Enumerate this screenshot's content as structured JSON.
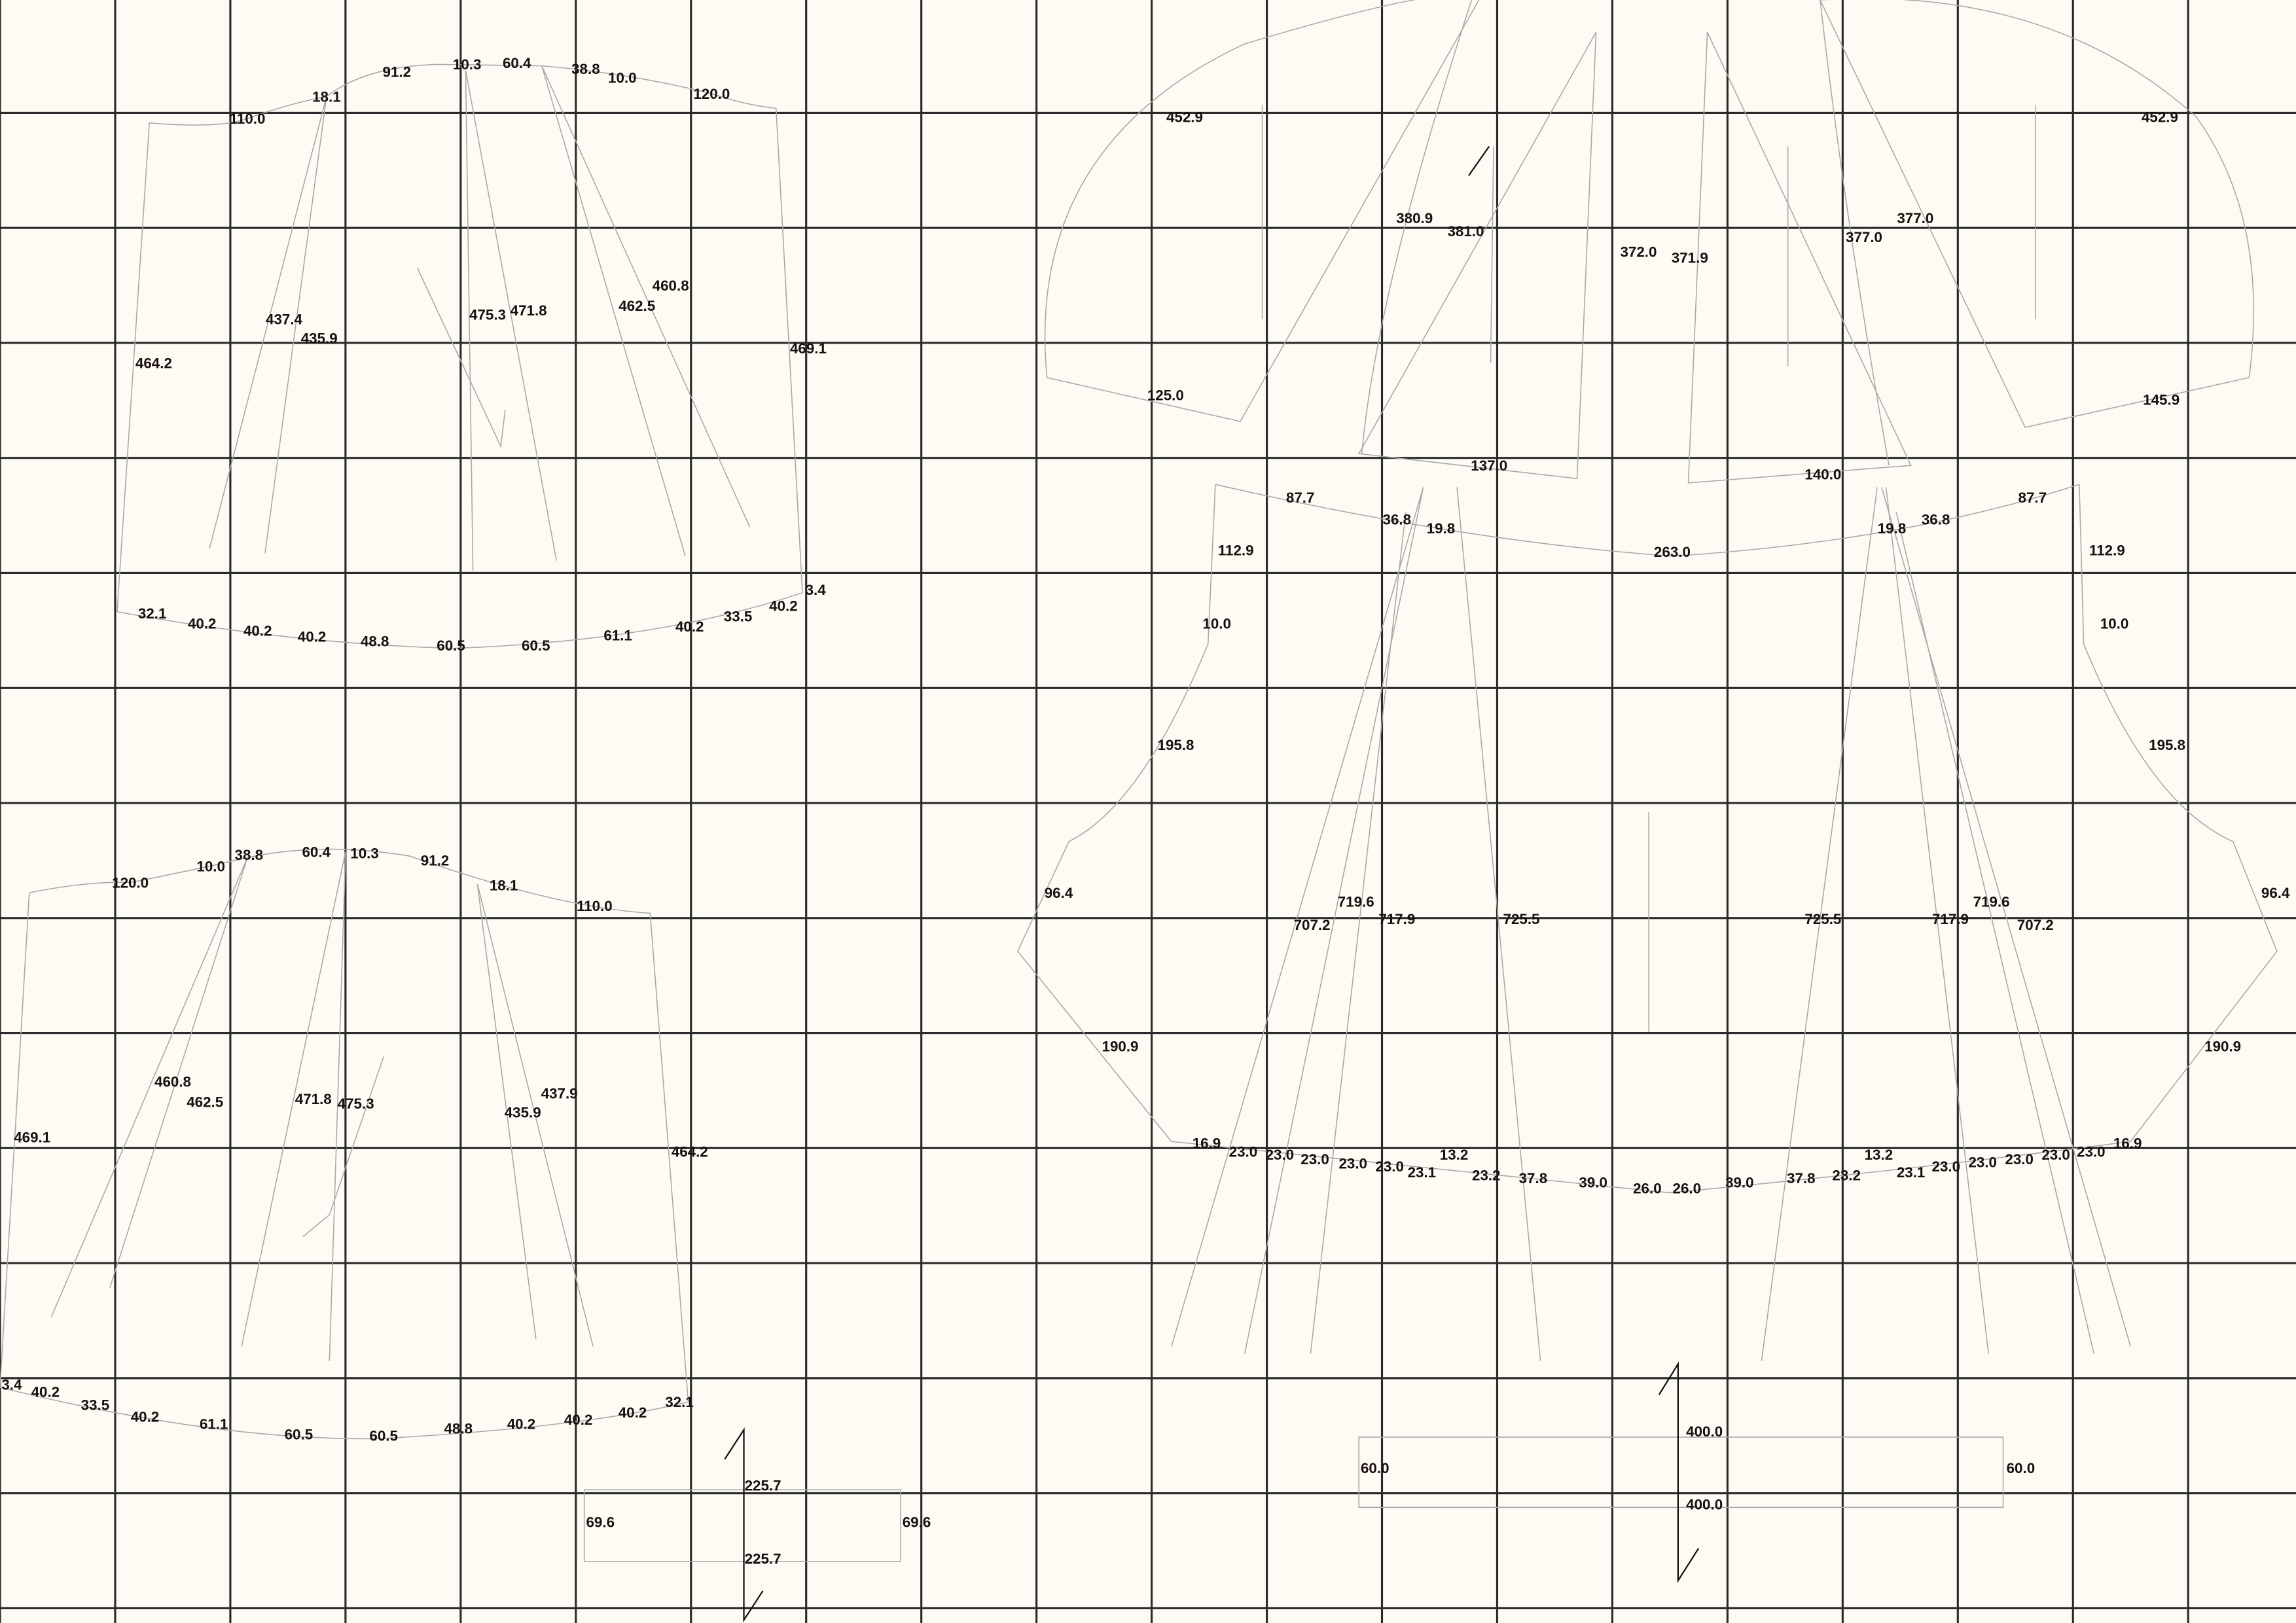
{
  "colors": {
    "background": "#fdfbf4",
    "grid": "#2a2a2a",
    "outline": "#a8a8a8",
    "text": "#1a0f0f"
  },
  "labels": {
    "upper_left_piece": [
      "110.0",
      "18.1",
      "91.2",
      "10.3",
      "60.4",
      "38.8",
      "10.0",
      "120.0",
      "437.4",
      "435.9",
      "475.3",
      "471.8",
      "462.5",
      "460.8",
      "464.2",
      "469.1",
      "32.1",
      "40.2",
      "40.2",
      "40.2",
      "48.8",
      "60.5",
      "60.5",
      "61.1",
      "40.2",
      "33.5",
      "40.2",
      "3.4"
    ],
    "lower_left_piece": [
      "120.0",
      "10.0",
      "38.8",
      "60.4",
      "10.3",
      "91.2",
      "18.1",
      "110.0",
      "460.8",
      "462.5",
      "471.8",
      "475.3",
      "435.9",
      "437.9",
      "469.1",
      "464.2",
      "3.4",
      "40.2",
      "33.5",
      "40.2",
      "61.1",
      "60.5",
      "60.5",
      "48.8",
      "40.2",
      "40.2",
      "40.2",
      "32.1"
    ],
    "small_rect": [
      "225.7",
      "69.6",
      "69.6",
      "225.7"
    ],
    "right_piece": [
      "452.9",
      "452.9",
      "380.9",
      "381.0",
      "372.0",
      "371.9",
      "377.0",
      "377.0",
      "125.0",
      "145.9",
      "137.0",
      "140.0",
      "87.7",
      "36.8",
      "19.8",
      "263.0",
      "19.8",
      "36.8",
      "87.7",
      "112.9",
      "112.9",
      "10.0",
      "10.0",
      "195.8",
      "195.8",
      "96.4",
      "96.4",
      "707.2",
      "719.6",
      "717.9",
      "725.5",
      "725.5",
      "717.9",
      "719.6",
      "707.2",
      "190.9",
      "190.9",
      "16.9",
      "23.0",
      "23.0",
      "23.0",
      "23.0",
      "23.0",
      "23.1",
      "13.2",
      "23.2",
      "37.8",
      "39.0",
      "26.0",
      "26.0",
      "39.0",
      "37.8",
      "23.2",
      "13.2",
      "23.1",
      "23.0",
      "23.0",
      "23.0",
      "23.0",
      "23.0",
      "16.9"
    ],
    "wide_rect": [
      "400.0",
      "60.0",
      "60.0",
      "400.0"
    ]
  }
}
